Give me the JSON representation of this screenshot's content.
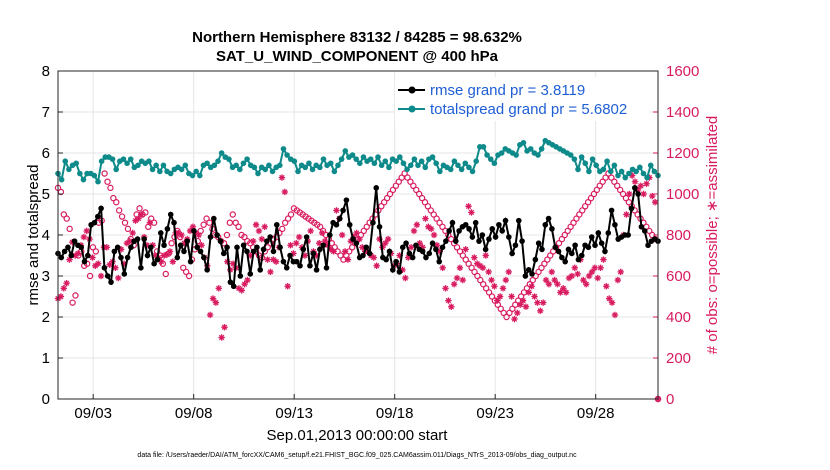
{
  "chart_data": {
    "type": "line",
    "title_line1": "Northern Hemisphere 83132 / 84285 = 98.632%",
    "title_line2": "SAT_U_WIND_COMPONENT @ 400 hPa",
    "xlabel": "Sep.01,2013 00:00:00 start",
    "ylabel": "rmse and totalspread",
    "ylabel_right": "# of obs: o=possible; ∗=assimilated",
    "footnote": "data file: /Users/raeder/DAI/ATM_forcXX/CAM6_setup/f.e21.FHIST_BGC.f09_025.CAM6assim.011/Diags_NTrS_2013-09/obs_diag_output.nc",
    "xlim": [
      1.25,
      31.1
    ],
    "x_ticks": [
      3,
      8,
      13,
      18,
      23,
      28
    ],
    "x_tick_labels": [
      "09/03",
      "09/08",
      "09/13",
      "09/18",
      "09/23",
      "09/28"
    ],
    "ylim": [
      0,
      8
    ],
    "y_ticks": [
      0,
      1,
      2,
      3,
      4,
      5,
      6,
      7,
      8
    ],
    "ylim_right": [
      0,
      1600
    ],
    "y_ticks_right": [
      0,
      200,
      400,
      600,
      800,
      1000,
      1200,
      1400,
      1600
    ],
    "colors": {
      "rmse": "#000000",
      "spread": "#0e8a8a",
      "obs": "#d81b60",
      "legend_text": "#1f5fd6"
    },
    "series": [
      {
        "name": "rmse grand pr = 3.8119",
        "marker": "star",
        "values": [
          3.55,
          3.45,
          3.6,
          3.7,
          3.5,
          3.85,
          3.75,
          3.7,
          3.35,
          3.5,
          4.25,
          4.3,
          4.45,
          4.65,
          3.2,
          3.0,
          2.85,
          3.6,
          3.7,
          3.45,
          3.05,
          3.45,
          3.7,
          3.85,
          3.9,
          3.2,
          3.9,
          3.5,
          3.7,
          3.3,
          3.4,
          4.05,
          3.75,
          4.15,
          4.5,
          4.3,
          3.45,
          3.75,
          3.6,
          3.85,
          3.35,
          4.1,
          3.7,
          3.6,
          3.45,
          3.15,
          3.95,
          4.4,
          4.0,
          3.85,
          3.55,
          3.7,
          2.85,
          2.75,
          3.7,
          3.0,
          3.75,
          3.6,
          3.05,
          3.6,
          3.7,
          3.15,
          3.65,
          3.85,
          3.95,
          3.6,
          4.25,
          3.7,
          3.35,
          3.2,
          3.5,
          3.35,
          3.35,
          3.25,
          3.65,
          3.95,
          3.25,
          3.55,
          3.15,
          3.65,
          3.75,
          3.2,
          4.0,
          4.3,
          4.25,
          4.4,
          4.6,
          4.85,
          4.25,
          3.9,
          3.8,
          3.45,
          3.5,
          3.7,
          3.55,
          4.3,
          5.15,
          4.2,
          3.45,
          3.4,
          3.6,
          3.15,
          3.35,
          3.1,
          3.7,
          3.8,
          3.55,
          3.45,
          3.75,
          3.65,
          3.6,
          3.45,
          3.55,
          3.8,
          3.65,
          3.35,
          3.7,
          3.85,
          4.1,
          4.3,
          3.85,
          4.1,
          4.2,
          4.25,
          4.15,
          3.95,
          4.3,
          3.85,
          4.0,
          3.65,
          3.9,
          4.15,
          3.95,
          4.25,
          4.1,
          4.35,
          3.95,
          3.55,
          3.75,
          4.35,
          3.85,
          3.0,
          3.15,
          3.05,
          3.4,
          3.8,
          3.65,
          4.25,
          4.4,
          4.15,
          3.7,
          3.6,
          3.45,
          3.35,
          3.65,
          3.55,
          3.75,
          3.4,
          3.5,
          3.75,
          3.7,
          3.95,
          3.75,
          4.05,
          3.8,
          3.6,
          4.05,
          4.6,
          4.25,
          3.9,
          3.95,
          4.0,
          4.0,
          4.65,
          5.15,
          5.0,
          4.2,
          4.1,
          3.75,
          3.85,
          3.9,
          3.85
        ]
      },
      {
        "name": "totalspread grand pr = 5.6802",
        "marker": "circle",
        "values": [
          5.5,
          5.35,
          5.8,
          5.6,
          5.7,
          5.75,
          5.5,
          5.35,
          5.5,
          5.5,
          5.45,
          5.3,
          5.8,
          5.9,
          5.9,
          5.85,
          5.6,
          5.8,
          5.85,
          5.75,
          5.85,
          5.65,
          5.7,
          5.8,
          5.75,
          5.8,
          5.6,
          5.7,
          5.55,
          5.7,
          5.55,
          5.5,
          5.6,
          5.65,
          5.6,
          5.7,
          5.5,
          5.45,
          5.55,
          5.45,
          5.7,
          5.75,
          5.65,
          5.7,
          5.8,
          6.0,
          5.9,
          5.85,
          5.65,
          5.7,
          5.6,
          5.75,
          5.85,
          5.7,
          5.65,
          5.5,
          5.65,
          5.6,
          5.7,
          5.55,
          5.65,
          5.7,
          6.1,
          5.95,
          5.85,
          5.8,
          5.55,
          5.7,
          5.65,
          5.75,
          5.6,
          5.7,
          5.65,
          5.85,
          5.7,
          5.75,
          5.55,
          5.7,
          5.85,
          6.05,
          5.9,
          5.95,
          5.85,
          5.75,
          5.9,
          5.8,
          5.85,
          5.75,
          5.9,
          5.7,
          5.8,
          5.65,
          5.85,
          5.8,
          5.9,
          5.75,
          5.6,
          5.7,
          5.85,
          5.7,
          5.8,
          5.65,
          5.85,
          5.9,
          5.75,
          5.55,
          5.7,
          5.65,
          5.6,
          5.8,
          5.7,
          5.6,
          5.75,
          5.65,
          5.55,
          5.8,
          6.15,
          6.15,
          5.95,
          5.85,
          5.75,
          5.95,
          6.0,
          6.1,
          6.05,
          6.0,
          5.95,
          6.2,
          6.25,
          6.05,
          6.1,
          6.0,
          5.95,
          6.1,
          6.3,
          6.25,
          6.2,
          6.15,
          6.1,
          6.05,
          6.0,
          5.95,
          5.85,
          5.6,
          5.9,
          5.75,
          5.55,
          5.85,
          5.7,
          5.55,
          5.6,
          5.8,
          5.55,
          5.7,
          5.45,
          5.55,
          5.4,
          5.5,
          5.6,
          5.55,
          5.65,
          5.5,
          5.4,
          5.7,
          5.55,
          5.45
        ]
      }
    ],
    "obs_assimilated": {
      "name": "assimilated",
      "values": [
        490,
        500,
        540,
        565,
        680,
        765,
        700,
        710,
        750,
        790,
        820,
        780,
        690,
        650,
        660,
        600,
        740,
        740,
        655,
        670,
        640,
        590,
        730,
        660,
        760,
        770,
        810,
        870,
        880,
        900,
        790,
        750,
        860,
        750,
        700,
        690,
        670,
        700,
        705,
        720,
        670,
        810,
        810,
        800,
        760,
        780,
        820,
        840,
        810,
        800,
        750,
        690,
        650,
        410,
        490,
        470,
        540,
        300,
        350,
        670,
        630,
        660,
        640,
        540,
        530,
        560,
        580,
        700,
        770,
        850,
        820,
        780,
        840,
        680,
        620,
        680,
        670,
        740,
        1080,
        1010,
        550,
        750,
        710,
        760,
        790,
        740,
        700,
        770,
        820,
        720,
        700,
        760,
        810,
        770,
        750,
        730,
        720,
        920,
        880,
        800,
        720,
        680,
        770,
        790,
        810,
        780,
        740,
        720,
        720,
        700,
        690,
        650,
        780,
        740,
        760,
        780,
        710,
        650,
        660,
        700,
        630,
        590,
        690,
        740,
        820,
        850,
        760,
        740,
        880,
        840,
        830,
        800,
        750,
        720,
        640,
        540,
        480,
        450,
        560,
        590,
        640,
        580,
        730,
        940,
        910,
        690,
        660,
        650,
        640,
        700,
        620,
        580,
        550,
        480,
        500,
        540,
        580,
        620,
        500,
        390,
        420,
        460,
        480,
        450,
        520,
        550,
        500,
        470,
        430,
        470,
        580,
        560,
        620,
        580,
        560,
        520,
        540,
        520,
        590,
        600,
        640,
        610,
        680,
        580,
        560,
        600,
        620,
        640,
        590,
        640,
        680,
        550,
        490,
        470,
        410,
        580,
        620,
        800,
        900,
        1000,
        1090,
        1060,
        1020,
        1040,
        1000,
        1050,
        1080,
        990,
        960,
        0
      ]
    },
    "obs_possible": {
      "name": "possible",
      "values": [
        1030,
        1010,
        900,
        880,
        830,
        470,
        505,
        700,
        720,
        650,
        660,
        600,
        740,
        720,
        860,
        870,
        1100,
        1060,
        1030,
        980,
        960,
        920,
        890,
        860,
        830,
        780,
        750,
        900,
        930,
        900,
        910,
        840,
        880,
        860,
        720,
        700,
        660,
        610,
        710,
        760,
        790,
        820,
        790,
        640,
        620,
        600,
        680,
        730,
        770,
        820,
        850,
        880,
        860,
        830,
        800,
        790,
        770,
        760,
        800,
        860,
        900,
        860,
        840,
        800,
        790,
        770,
        760,
        740,
        720,
        700,
        690,
        720,
        740,
        760,
        780,
        790,
        810,
        830,
        860,
        880,
        900,
        930,
        920,
        910,
        900,
        890,
        880,
        870,
        860,
        850,
        840,
        820,
        800,
        780,
        760,
        740,
        720,
        700,
        680,
        700,
        720,
        740,
        760,
        780,
        800,
        820,
        840,
        860,
        880,
        900,
        920,
        940,
        960,
        980,
        1000,
        1020,
        1040,
        1060,
        1080,
        1100,
        1080,
        1060,
        1040,
        1020,
        1000,
        980,
        960,
        940,
        920,
        900,
        880,
        860,
        840,
        820,
        800,
        780,
        760,
        740,
        720,
        700,
        680,
        660,
        640,
        620,
        600,
        580,
        560,
        540,
        520,
        500,
        480,
        460,
        440,
        420,
        400,
        420,
        440,
        460,
        480,
        500,
        520,
        540,
        560,
        580,
        600,
        620,
        640,
        660,
        680,
        700,
        720,
        740,
        760,
        780,
        800,
        820,
        840,
        860,
        880,
        900,
        920,
        940,
        960,
        980,
        1000,
        1020,
        1040,
        1060,
        1080,
        1100,
        1080,
        1060,
        1040,
        1020,
        1000,
        980,
        960,
        940,
        920,
        900,
        880,
        860,
        840,
        820,
        800,
        780,
        0
      ]
    },
    "legend_location": "top-right"
  }
}
